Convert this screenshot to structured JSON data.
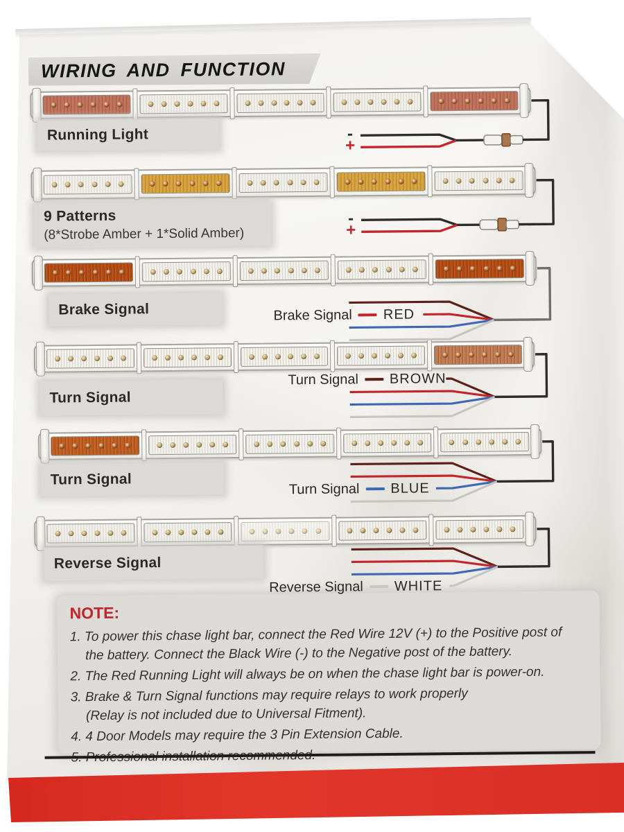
{
  "page": {
    "title": "WIRING AND FUNCTION"
  },
  "colors": {
    "paper": "#f3f2ee",
    "title_band": "#d6d5d2",
    "label_box": "#dbdad6",
    "note_box": "#dcdbd7",
    "note_red": "#c3232a",
    "bottom_red_band": "#d92f26",
    "seg_white": "#f2f0ea",
    "seg_red_soft": "#c06f58",
    "seg_red_strong": "#b44a10",
    "seg_amber_gold": "#d8a338",
    "seg_amber_salmon": "#c17a50",
    "seg_amber_deep": "#bf5c1e",
    "wire_black": "#2e2c2a",
    "wire_gray": "#716f6b",
    "wire_red": "#c2262a",
    "wire_brown": "#5e2016",
    "wire_blue": "#3f68b4",
    "wire_white": "#c6c5c0",
    "connector_copper": "#a8764a"
  },
  "harness_wire_keys": [
    "wire_brown",
    "wire_red",
    "wire_blue",
    "wire_white"
  ],
  "sections": [
    {
      "id": "running-light",
      "label": "Running Light",
      "segments": [
        "seg_red_soft",
        "seg_white",
        "seg_white",
        "seg_white",
        "seg_red_soft"
      ],
      "wiring": {
        "type": "power",
        "negative_label": "-",
        "positive_label": "+"
      }
    },
    {
      "id": "nine-patterns",
      "label": "9 Patterns",
      "sublabel": "(8*Strobe Amber + 1*Solid Amber)",
      "segments": [
        "seg_white",
        "seg_amber_gold",
        "seg_white",
        "seg_amber_gold",
        "seg_white"
      ],
      "wiring": {
        "type": "power",
        "negative_label": "-",
        "positive_label": "+"
      }
    },
    {
      "id": "brake-signal",
      "label": "Brake Signal",
      "segments": [
        "seg_red_strong",
        "seg_white",
        "seg_white",
        "seg_white",
        "seg_red_strong"
      ],
      "wiring": {
        "type": "harness",
        "signal_label": "Brake Signal",
        "wire_color_label": "RED",
        "wire_key": "wire_red",
        "label_row": 1
      }
    },
    {
      "id": "turn-signal-brown",
      "label": "Turn Signal",
      "segments": [
        "seg_white",
        "seg_white",
        "seg_white",
        "seg_white",
        "seg_amber_salmon"
      ],
      "wiring": {
        "type": "harness",
        "signal_label": "Turn Signal",
        "wire_color_label": "BROWN",
        "wire_key": "wire_brown",
        "label_row": 0
      }
    },
    {
      "id": "turn-signal-blue",
      "label": "Turn Signal",
      "segments": [
        "seg_amber_deep",
        "seg_white",
        "seg_white",
        "seg_white",
        "seg_white"
      ],
      "wiring": {
        "type": "harness",
        "signal_label": "Turn Signal",
        "wire_color_label": "BLUE",
        "wire_key": "wire_blue",
        "label_row": 2
      }
    },
    {
      "id": "reverse-signal",
      "label": "Reverse Signal",
      "segments": [
        "seg_white",
        "seg_white",
        "seg_white_faded",
        "seg_white",
        "seg_white"
      ],
      "wiring": {
        "type": "harness",
        "signal_label": "Reverse Signal",
        "wire_color_label": "WHITE",
        "wire_key": "wire_white",
        "label_row": 3
      }
    }
  ],
  "note": {
    "title": "NOTE:",
    "items": [
      "1. To power this chase light bar, connect the Red Wire 12V (+) to the Positive post of\nthe battery. Connect the Black Wire (-) to the Negative post of the battery.",
      "2. The Red Running Light will always be on when the chase light bar is power-on.",
      "3. Brake & Turn Signal functions may require relays to work properly\n(Relay is not included due to Universal Fitment).",
      "4. 4 Door Models may require the 3 Pin Extension Cable.",
      "5. Professional installation recommended."
    ]
  }
}
